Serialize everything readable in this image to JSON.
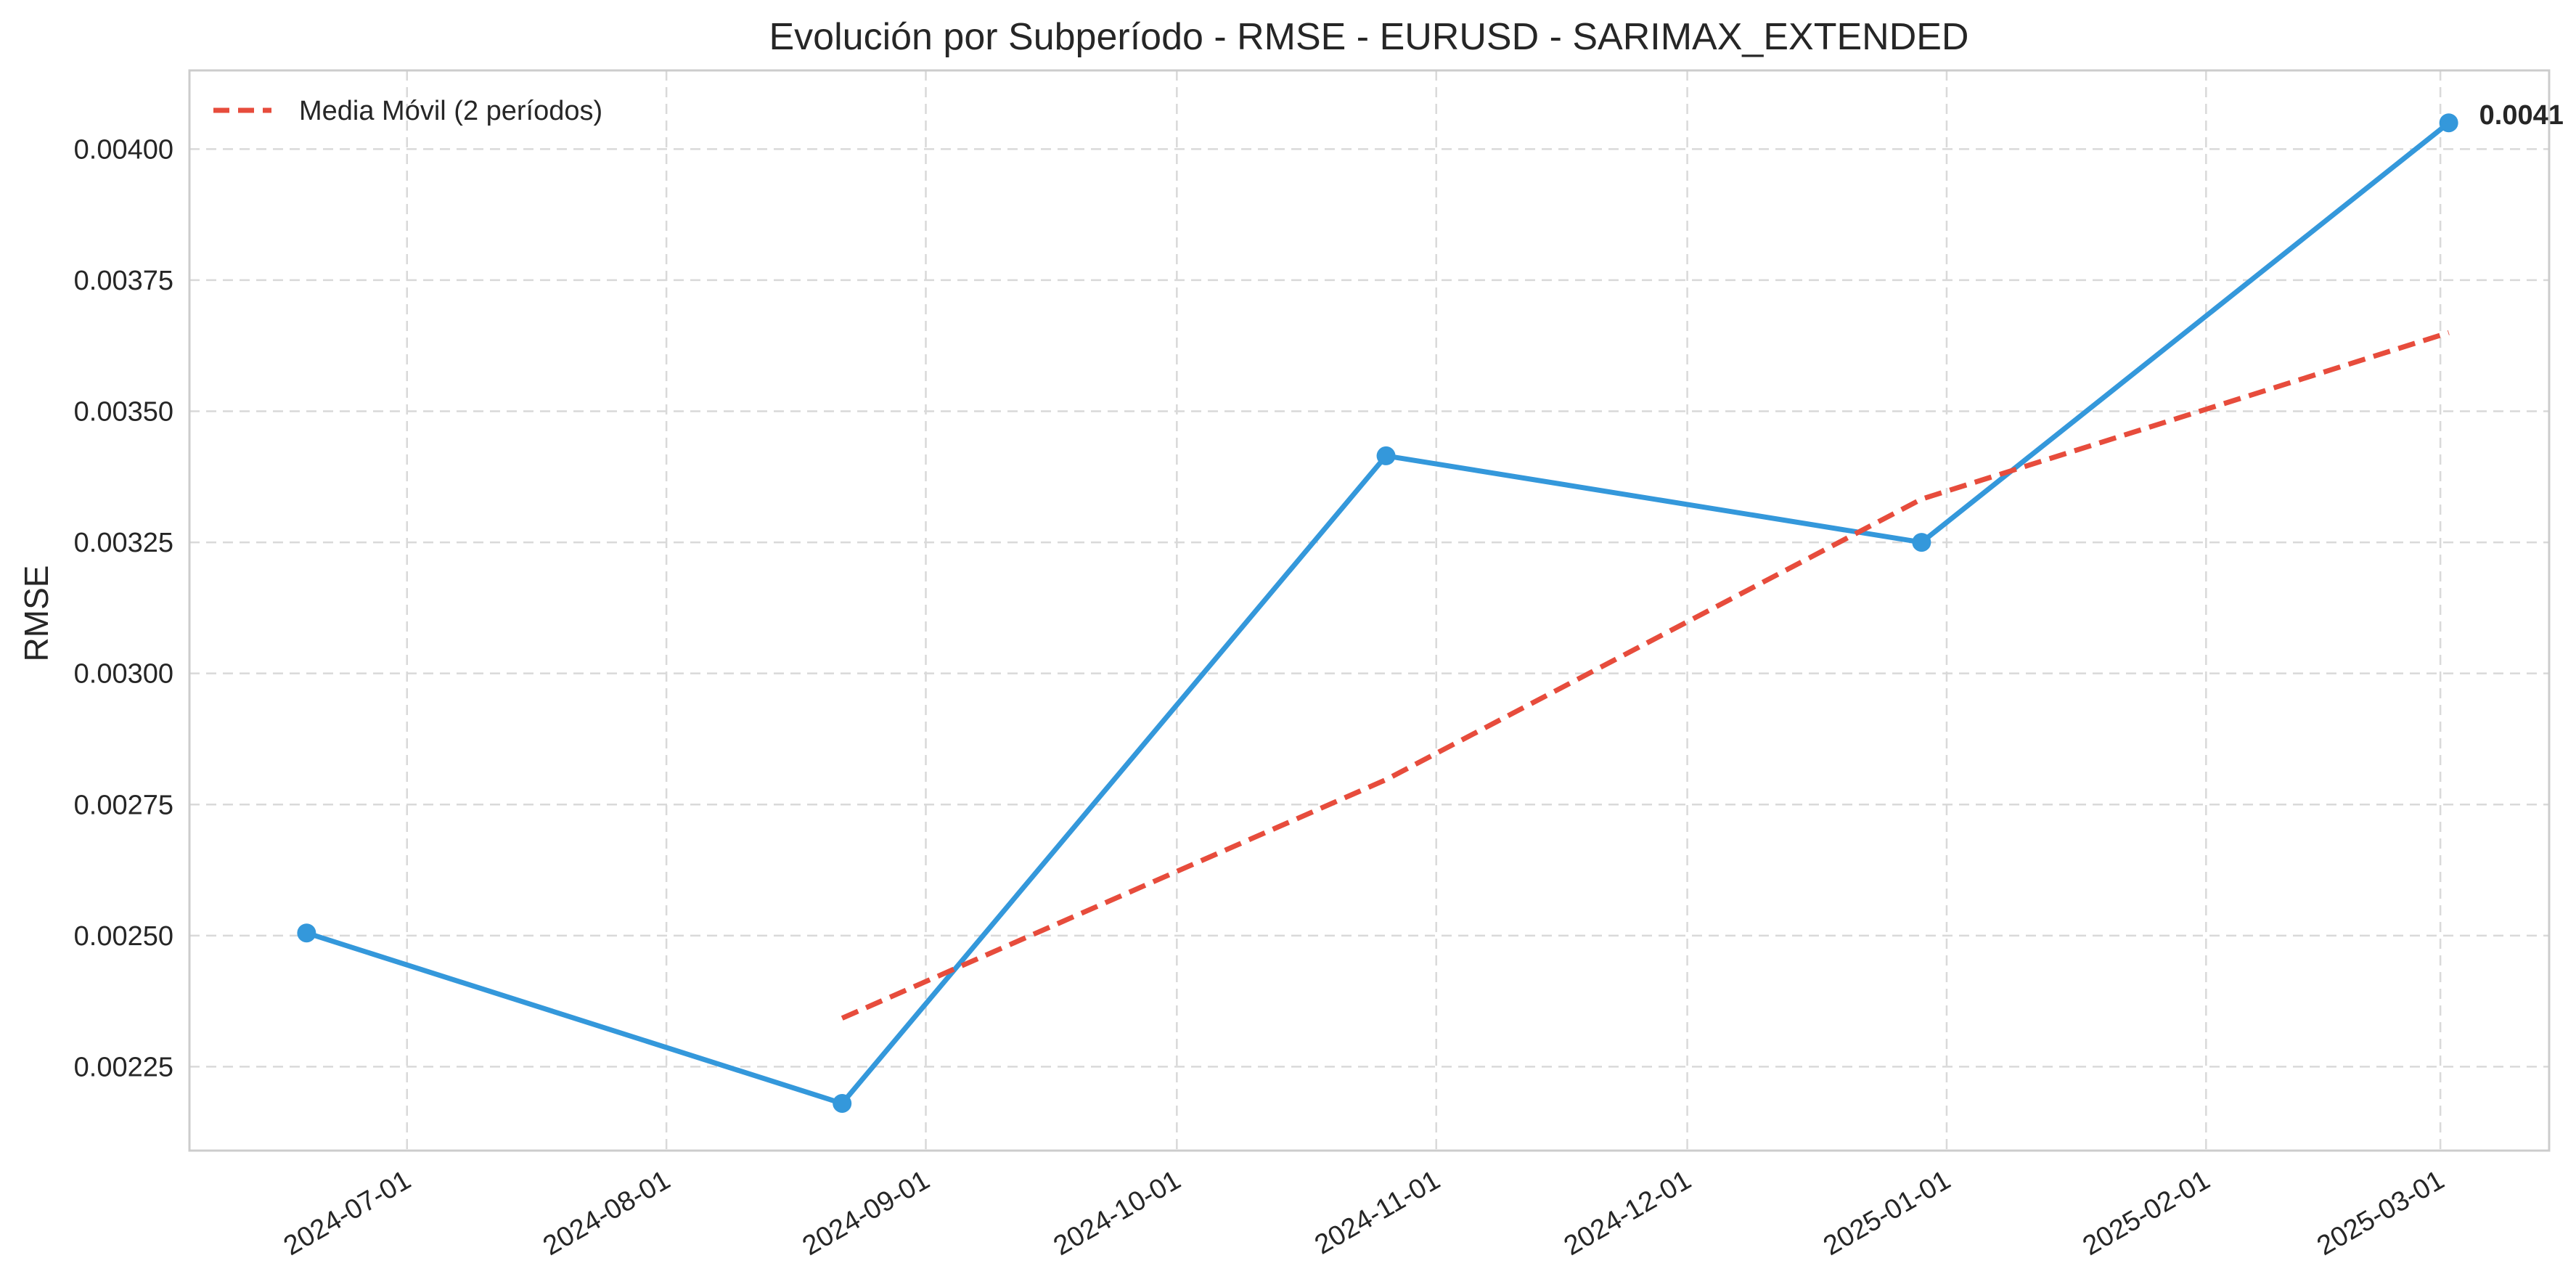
{
  "chart_data": {
    "type": "line",
    "title": "Evolución por Subperíodo - RMSE - EURUSD - SARIMAX_EXTENDED",
    "xlabel": "",
    "ylabel": "RMSE",
    "x_ticks": [
      "2024-07-01",
      "2024-08-01",
      "2024-09-01",
      "2024-10-01",
      "2024-11-01",
      "2024-12-01",
      "2025-01-01",
      "2025-02-01",
      "2025-03-01"
    ],
    "y_ticks": [
      "0.00225",
      "0.00250",
      "0.00275",
      "0.00300",
      "0.00325",
      "0.00350",
      "0.00375",
      "0.00400"
    ],
    "xlim": [
      "2024-06-05",
      "2025-03-14"
    ],
    "ylim": [
      0.00209,
      0.00415
    ],
    "grid": true,
    "legend_position": "top-left",
    "series": [
      {
        "key": "rmse",
        "color": "#3498db",
        "style": "solid",
        "markers": true,
        "x": [
          "2024-06-19",
          "2024-08-22",
          "2024-10-26",
          "2024-12-29",
          "2025-03-02"
        ],
        "y": [
          0.002505,
          0.00218,
          0.003415,
          0.00325,
          0.00405
        ]
      },
      {
        "name": "Media Móvil (2 períodos)",
        "color": "#e74c3c",
        "style": "dashed",
        "markers": false,
        "x": [
          "2024-08-22",
          "2024-10-26",
          "2024-12-29",
          "2025-03-02"
        ],
        "y": [
          0.0023425,
          0.0027975,
          0.0033325,
          0.00365
        ]
      }
    ],
    "annotations": [
      {
        "text": "0.0041",
        "x": "2025-03-02",
        "y": 0.00405
      }
    ]
  }
}
